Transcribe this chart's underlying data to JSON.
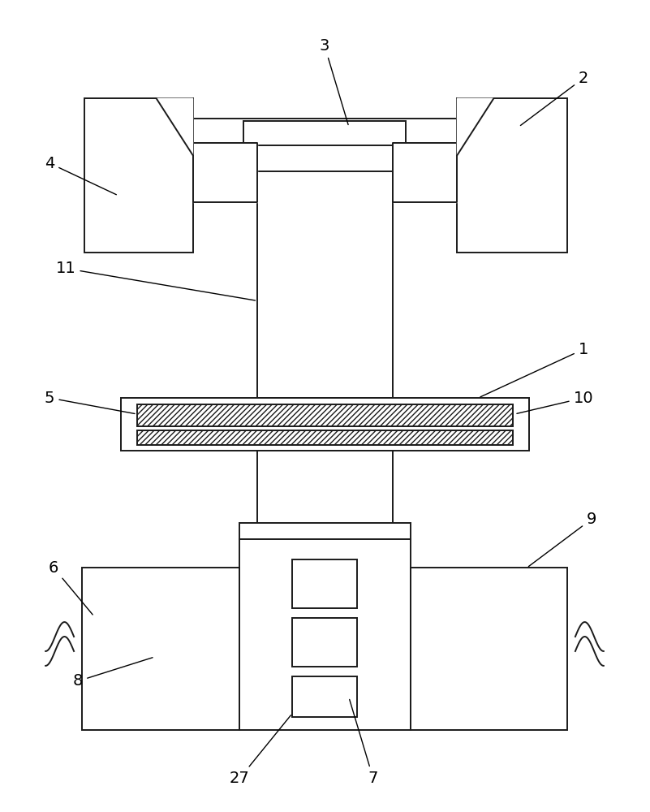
{
  "bg_color": "#ffffff",
  "line_color": "#1a1a1a",
  "line_width": 1.4,
  "fig_width": 8.01,
  "fig_height": 10.0,
  "label_fontsize": 14
}
